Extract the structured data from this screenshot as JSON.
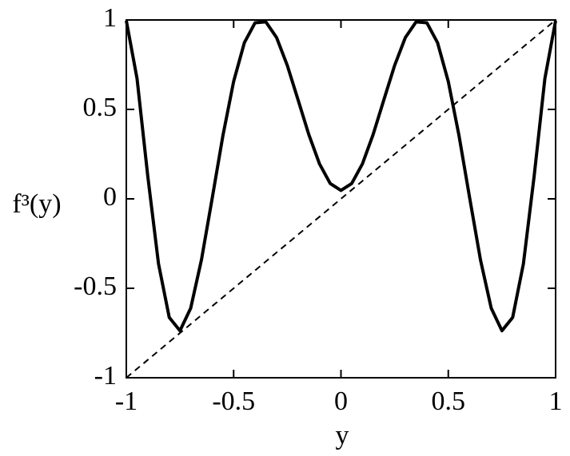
{
  "chart_data": {
    "type": "line",
    "xlabel": "y",
    "ylabel": "f³(y)",
    "xlim": [
      -1,
      1
    ],
    "ylim": [
      -1,
      1
    ],
    "xticks": [
      -1,
      -0.5,
      0,
      0.5,
      1
    ],
    "yticks": [
      -1,
      -0.5,
      0,
      0.5,
      1
    ],
    "x": [
      -1,
      -0.95,
      -0.9,
      -0.85,
      -0.8,
      -0.75,
      -0.7,
      -0.65,
      -0.6,
      -0.55,
      -0.5,
      -0.45,
      -0.4,
      -0.35,
      -0.3,
      -0.25,
      -0.2,
      -0.15,
      -0.1,
      -0.05,
      0,
      0.05,
      0.1,
      0.15,
      0.2,
      0.25,
      0.3,
      0.35,
      0.4,
      0.45,
      0.5,
      0.55,
      0.6,
      0.65,
      0.7,
      0.75,
      0.8,
      0.85,
      0.9,
      0.95,
      1
    ],
    "series": [
      {
        "color": "#000000",
        "style": "solid",
        "values": [
          0.9961,
          0.6723,
          0.1269,
          -0.3626,
          -0.6627,
          -0.7373,
          -0.6109,
          -0.3412,
          0.0025,
          0.3533,
          0.6561,
          0.873,
          0.9846,
          0.9896,
          0.9017,
          0.7459,
          0.5541,
          0.3601,
          0.1955,
          0.0857,
          0.047,
          0.0857,
          0.1955,
          0.3601,
          0.5541,
          0.7459,
          0.9017,
          0.9896,
          0.9846,
          0.873,
          0.6561,
          0.3533,
          0.0025,
          -0.3412,
          -0.6109,
          -0.7373,
          -0.6627,
          -0.3626,
          0.1269,
          0.6723,
          0.9961
        ]
      },
      {
        "color": "#000000",
        "style": "dashed",
        "x": [
          -1,
          1
        ],
        "values": [
          -1,
          1
        ]
      }
    ]
  }
}
